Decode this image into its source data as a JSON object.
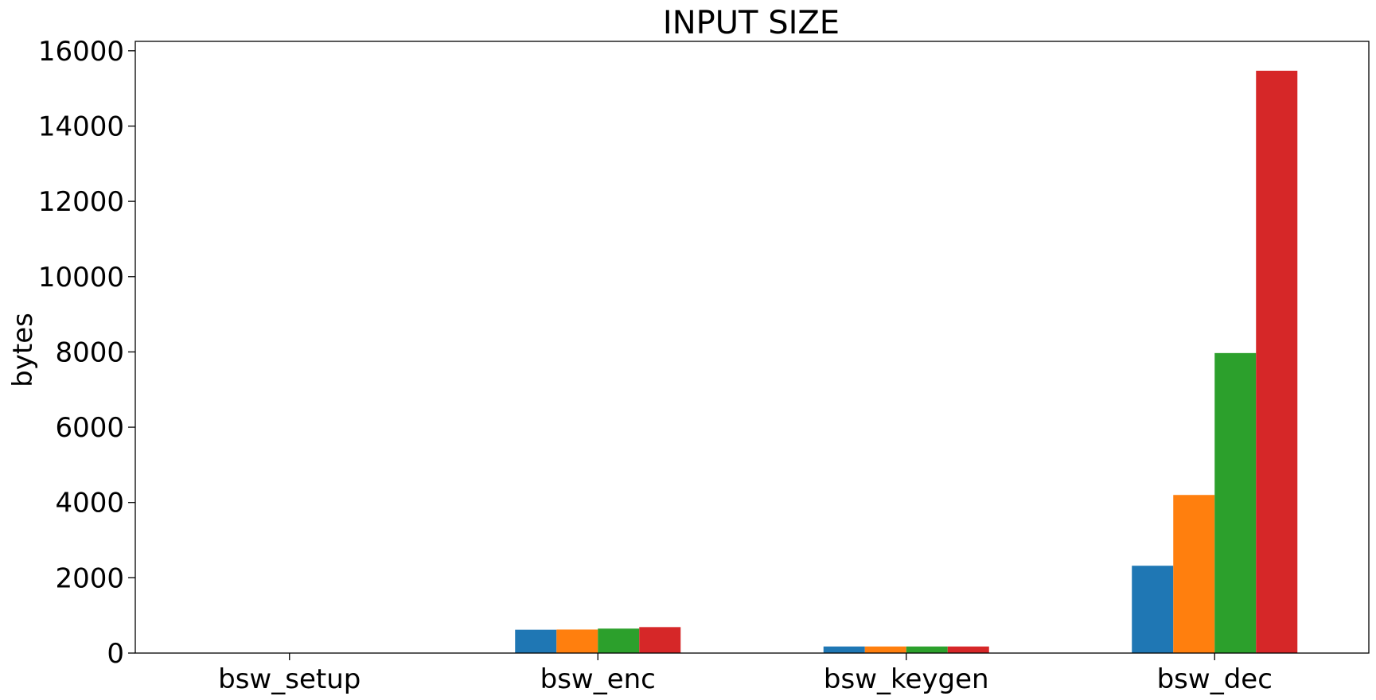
{
  "chart_data": {
    "type": "bar",
    "title": "INPUT SIZE",
    "xlabel": "",
    "ylabel": "bytes",
    "categories": [
      "bsw_setup",
      "bsw_enc",
      "bsw_keygen",
      "bsw_dec"
    ],
    "series": [
      {
        "color": "#1f77b4",
        "values": [
          0,
          620,
          175,
          2320
        ]
      },
      {
        "color": "#ff7f0e",
        "values": [
          0,
          625,
          175,
          4200
        ]
      },
      {
        "color": "#2ca02c",
        "values": [
          0,
          650,
          175,
          7970
        ]
      },
      {
        "color": "#d62728",
        "values": [
          0,
          690,
          175,
          15470
        ]
      }
    ],
    "ylim": [
      0,
      16250
    ],
    "yticks": [
      0,
      2000,
      4000,
      6000,
      8000,
      10000,
      12000,
      14000,
      16000
    ],
    "ytick_labels": [
      "0",
      "2000",
      "4000",
      "6000",
      "8000",
      "10000",
      "12000",
      "14000",
      "16000"
    ],
    "grid": false,
    "legend": "none"
  }
}
